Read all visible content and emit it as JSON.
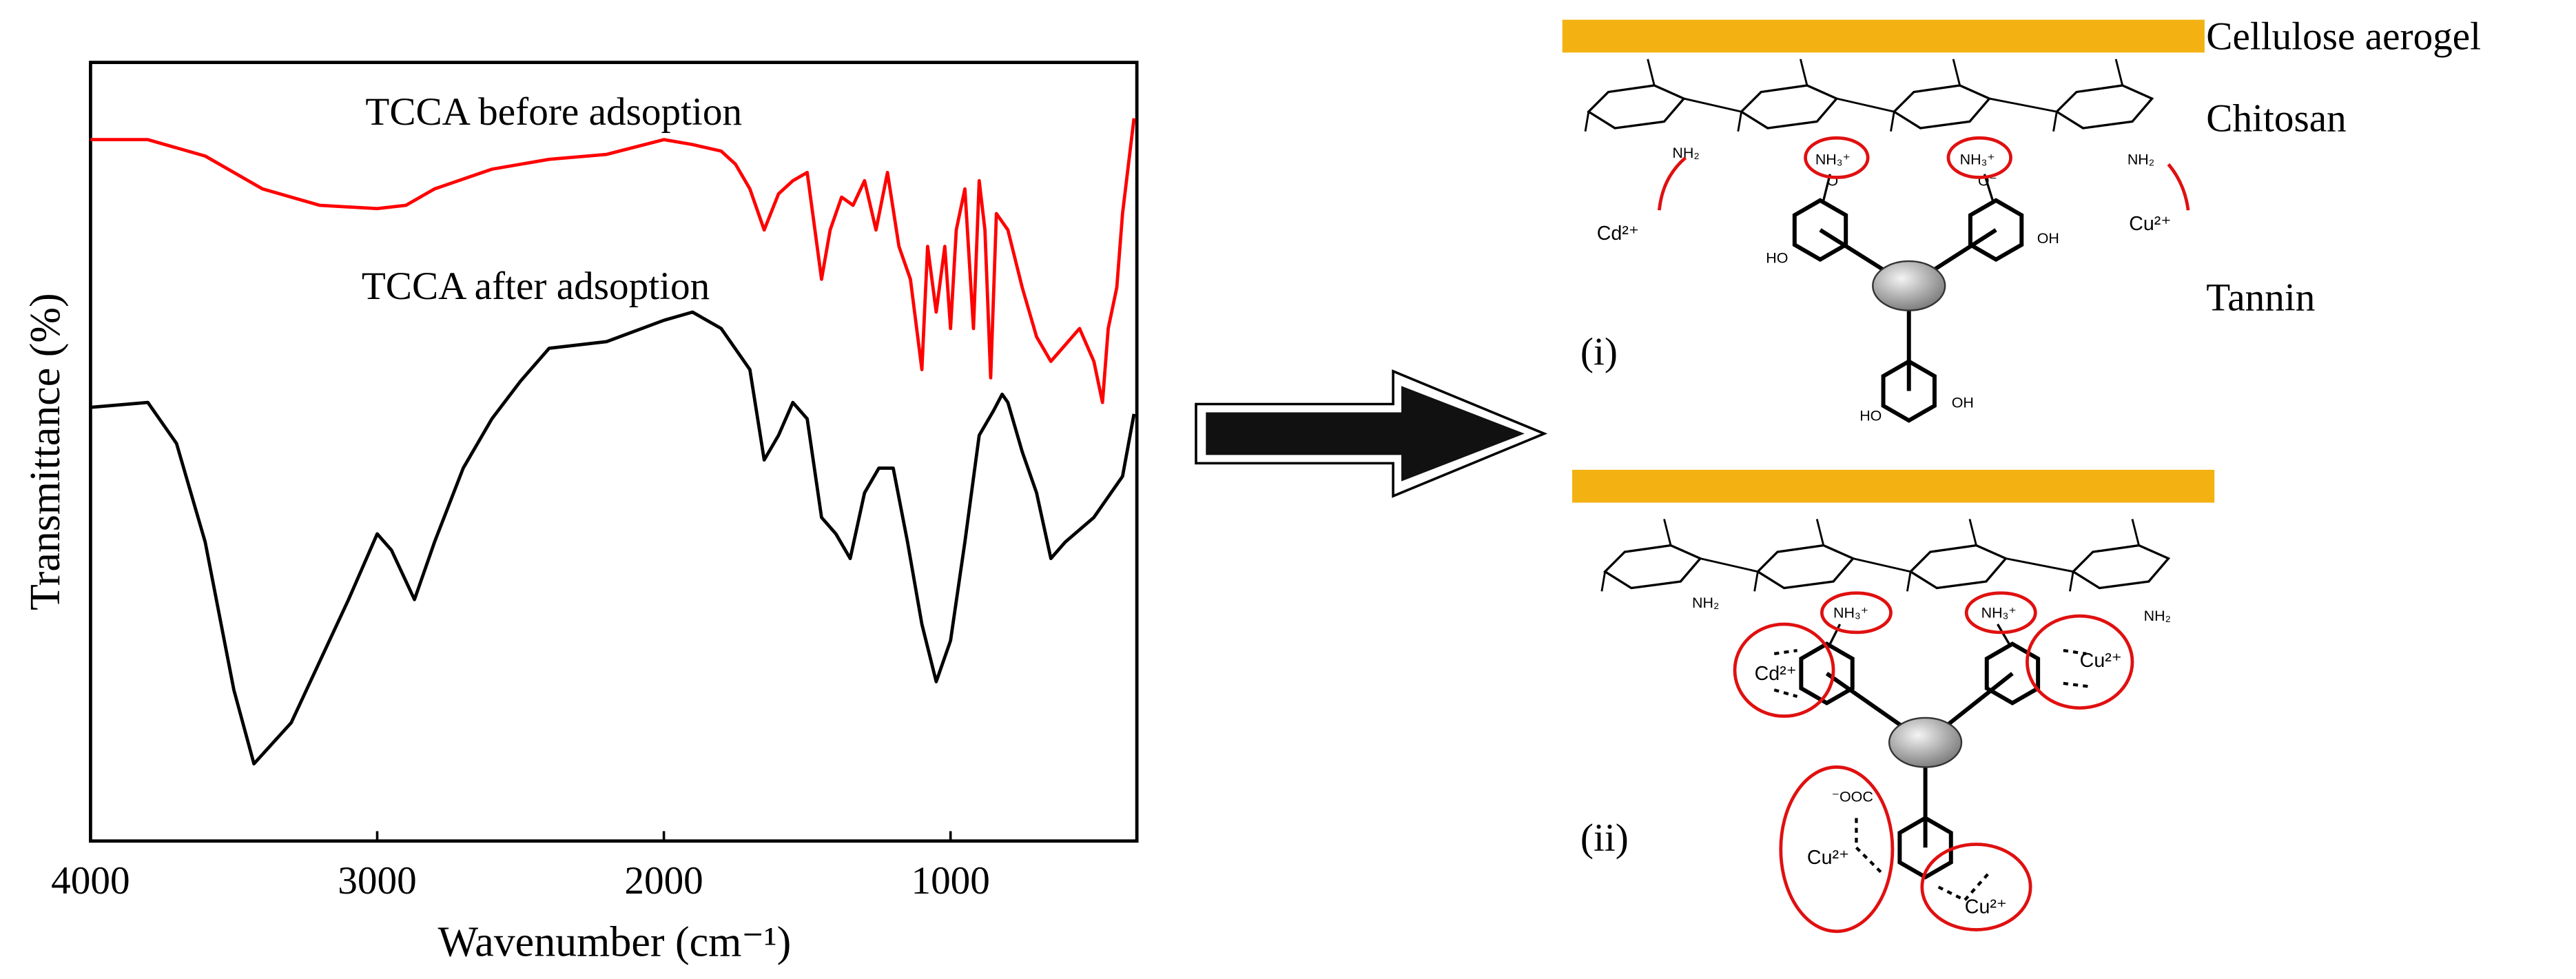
{
  "chart_data": {
    "type": "line",
    "xlabel": "Wavenumber (cm⁻¹)",
    "ylabel": "Transmittance (%)",
    "xlim": [
      4000,
      350
    ],
    "ylim": [
      0,
      474
    ],
    "xticks": [
      4000,
      3000,
      2000,
      1000
    ],
    "series": [
      {
        "name": "TCCA before adsoption",
        "color": "#ff0000",
        "x": [
          4000,
          3800,
          3600,
          3400,
          3200,
          3000,
          2900,
          2800,
          2600,
          2400,
          2200,
          2000,
          1900,
          1800,
          1750,
          1700,
          1650,
          1600,
          1550,
          1500,
          1450,
          1420,
          1380,
          1340,
          1300,
          1260,
          1220,
          1180,
          1140,
          1100,
          1080,
          1050,
          1020,
          1000,
          980,
          950,
          920,
          900,
          880,
          860,
          840,
          800,
          750,
          700,
          650,
          600,
          550,
          500,
          470,
          450,
          420,
          400,
          360
        ],
        "values": [
          427,
          427,
          417,
          397,
          387,
          385,
          387,
          397,
          409,
          415,
          418,
          427,
          424,
          420,
          412,
          397,
          372,
          394,
          402,
          407,
          342,
          372,
          392,
          387,
          402,
          372,
          407,
          362,
          342,
          287,
          362,
          322,
          362,
          312,
          372,
          397,
          312,
          402,
          372,
          282,
          382,
          372,
          337,
          307,
          292,
          302,
          312,
          292,
          267,
          312,
          337,
          382,
          440
        ]
      },
      {
        "name": "TCCA after adsoption",
        "color": "#000000",
        "x": [
          4000,
          3800,
          3700,
          3600,
          3500,
          3430,
          3300,
          3100,
          3000,
          2950,
          2870,
          2800,
          2700,
          2600,
          2500,
          2400,
          2200,
          2000,
          1900,
          1800,
          1700,
          1650,
          1600,
          1550,
          1500,
          1450,
          1400,
          1350,
          1300,
          1250,
          1200,
          1150,
          1100,
          1050,
          1000,
          950,
          900,
          850,
          820,
          800,
          750,
          700,
          650,
          600,
          500,
          400,
          360
        ],
        "values": [
          264,
          267,
          242,
          182,
          92,
          47,
          72,
          147,
          187,
          177,
          147,
          182,
          227,
          257,
          280,
          300,
          304,
          317,
          322,
          312,
          287,
          232,
          247,
          267,
          257,
          197,
          187,
          172,
          212,
          227,
          227,
          182,
          132,
          97,
          122,
          182,
          247,
          262,
          272,
          267,
          237,
          212,
          172,
          182,
          197,
          222,
          260
        ]
      }
    ]
  },
  "diagram": {
    "layers": [
      "Cellulose aerogel",
      "Chitosan",
      "Tannin"
    ],
    "panels": [
      "(i)",
      "(ii)"
    ],
    "chem": {
      "amine": "NH₂",
      "ammonium": "NH₃⁺",
      "oxide": "O⁻",
      "hydroxyl_left": "HO",
      "hydroxyl_right": "OH",
      "carboxylate": "⁻OOC",
      "cd": "Cd²⁺",
      "cu": "Cu²⁺"
    }
  }
}
